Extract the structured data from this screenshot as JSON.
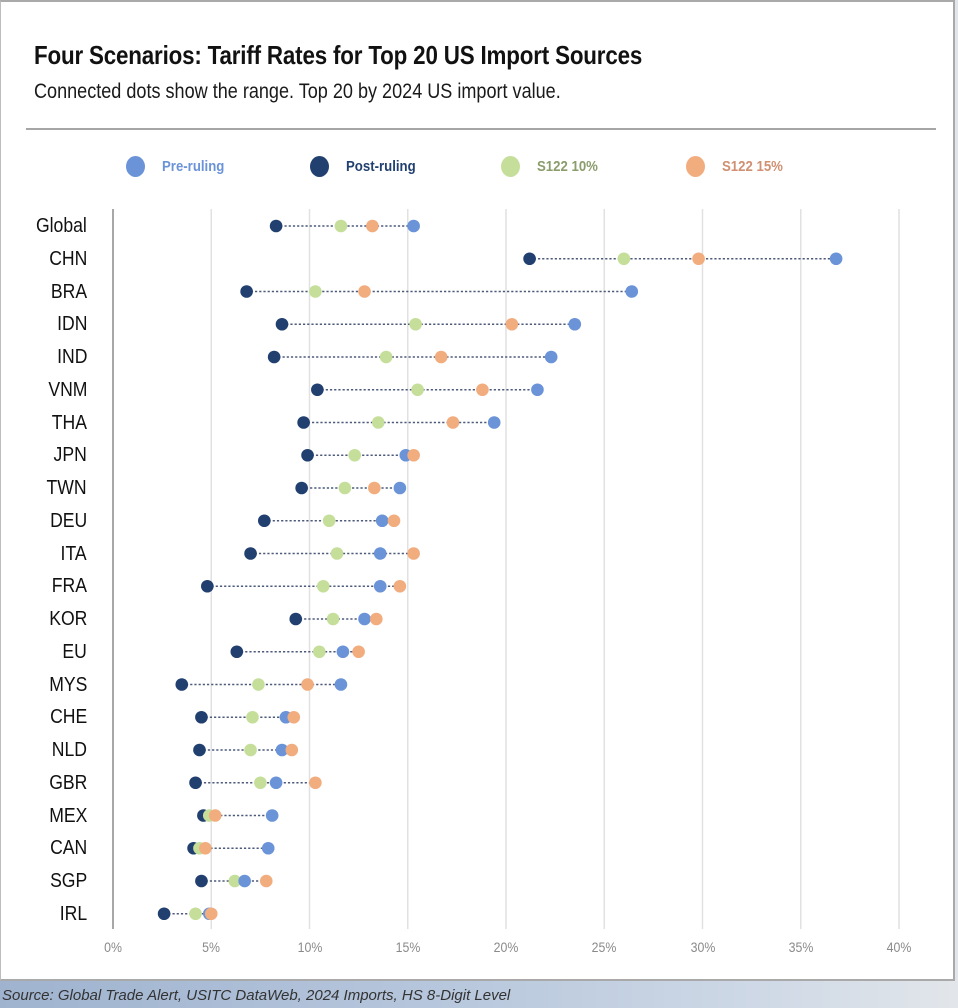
{
  "header": {
    "title": "Four Scenarios: Tariff Rates for Top 20 US Import Sources",
    "subtitle": "Connected dots show the range. Top 20 by 2024 US import value."
  },
  "legend": [
    {
      "key": "pre",
      "label": "Pre-ruling",
      "color": "#6a93d8",
      "text_color": "#6a93d8"
    },
    {
      "key": "post",
      "label": "Post-ruling",
      "color": "#21406f",
      "text_color": "#21406f"
    },
    {
      "key": "s10",
      "label": "S122 10%",
      "color": "#c5df9b",
      "text_color": "#8a9d6b"
    },
    {
      "key": "s15",
      "label": "S122 15%",
      "color": "#f2ad7f",
      "text_color": "#d09071"
    }
  ],
  "source": "Source: Global Trade Alert, USITC DataWeb, 2024 Imports, HS 8-Digit Level",
  "chart_data": {
    "type": "scatter",
    "subtype": "dot-range (dumbbell)",
    "title": "Four Scenarios: Tariff Rates for Top 20 US Import Sources",
    "subtitle": "Connected dots show the range. Top 20 by 2024 US import value.",
    "xlabel": "",
    "ylabel": "",
    "xlim": [
      0,
      40
    ],
    "x_ticks": [
      0,
      5,
      10,
      15,
      20,
      25,
      30,
      35,
      40
    ],
    "x_tick_labels": [
      "0%",
      "5%",
      "10%",
      "15%",
      "20%",
      "25%",
      "30%",
      "35%",
      "40%"
    ],
    "grid": "vertical",
    "legend_position": "top",
    "categories": [
      "Global",
      "CHN",
      "BRA",
      "IDN",
      "IND",
      "VNM",
      "THA",
      "JPN",
      "TWN",
      "DEU",
      "ITA",
      "FRA",
      "KOR",
      "EU",
      "MYS",
      "CHE",
      "NLD",
      "GBR",
      "MEX",
      "CAN",
      "SGP",
      "IRL"
    ],
    "series": [
      {
        "name": "Pre-ruling",
        "key": "pre",
        "values": [
          15.3,
          36.8,
          26.4,
          23.5,
          22.3,
          21.6,
          19.4,
          14.9,
          14.6,
          13.7,
          13.6,
          13.6,
          12.8,
          11.7,
          11.6,
          8.8,
          8.6,
          8.3,
          8.1,
          7.9,
          6.7,
          4.9
        ]
      },
      {
        "name": "Post-ruling",
        "key": "post",
        "values": [
          8.3,
          21.2,
          6.8,
          8.6,
          8.2,
          10.4,
          9.7,
          9.9,
          9.6,
          7.7,
          7.0,
          4.8,
          9.3,
          6.3,
          3.5,
          4.5,
          4.4,
          4.2,
          4.6,
          4.1,
          4.5,
          2.6
        ]
      },
      {
        "name": "S122 10%",
        "key": "s10",
        "values": [
          11.6,
          26.0,
          10.3,
          15.4,
          13.9,
          15.5,
          13.5,
          12.3,
          11.8,
          11.0,
          11.4,
          10.7,
          11.2,
          10.5,
          7.4,
          7.1,
          7.0,
          7.5,
          4.9,
          4.4,
          6.2,
          4.2
        ]
      },
      {
        "name": "S122 15%",
        "key": "s15",
        "values": [
          13.2,
          29.8,
          12.8,
          20.3,
          16.7,
          18.8,
          17.3,
          15.3,
          13.3,
          14.3,
          15.3,
          14.6,
          13.4,
          12.5,
          9.9,
          9.2,
          9.1,
          10.3,
          5.2,
          4.7,
          7.8,
          5.0
        ]
      }
    ]
  }
}
